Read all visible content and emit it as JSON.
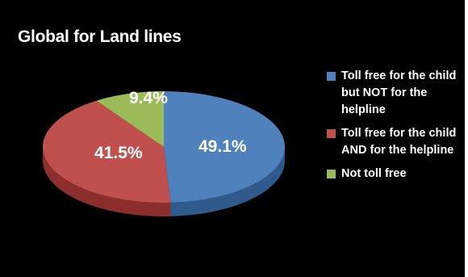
{
  "chart_data": {
    "type": "pie",
    "title": "Global for Land lines",
    "slices": [
      {
        "label": "Toll free for the child but NOT for the helpline",
        "value": 49.1,
        "display": "49.1%",
        "color": "#4F81BD",
        "side": "#2E5A8C"
      },
      {
        "label": "Toll free for the child AND for the helpline",
        "value": 41.5,
        "display": "41.5%",
        "color": "#C0504D",
        "side": "#8B2E2C"
      },
      {
        "label": "Not toll free",
        "value": 9.4,
        "display": "9.4%",
        "color": "#9BBB59",
        "side": "#6C8A33"
      }
    ],
    "legend_position": "right",
    "style": "3d"
  }
}
